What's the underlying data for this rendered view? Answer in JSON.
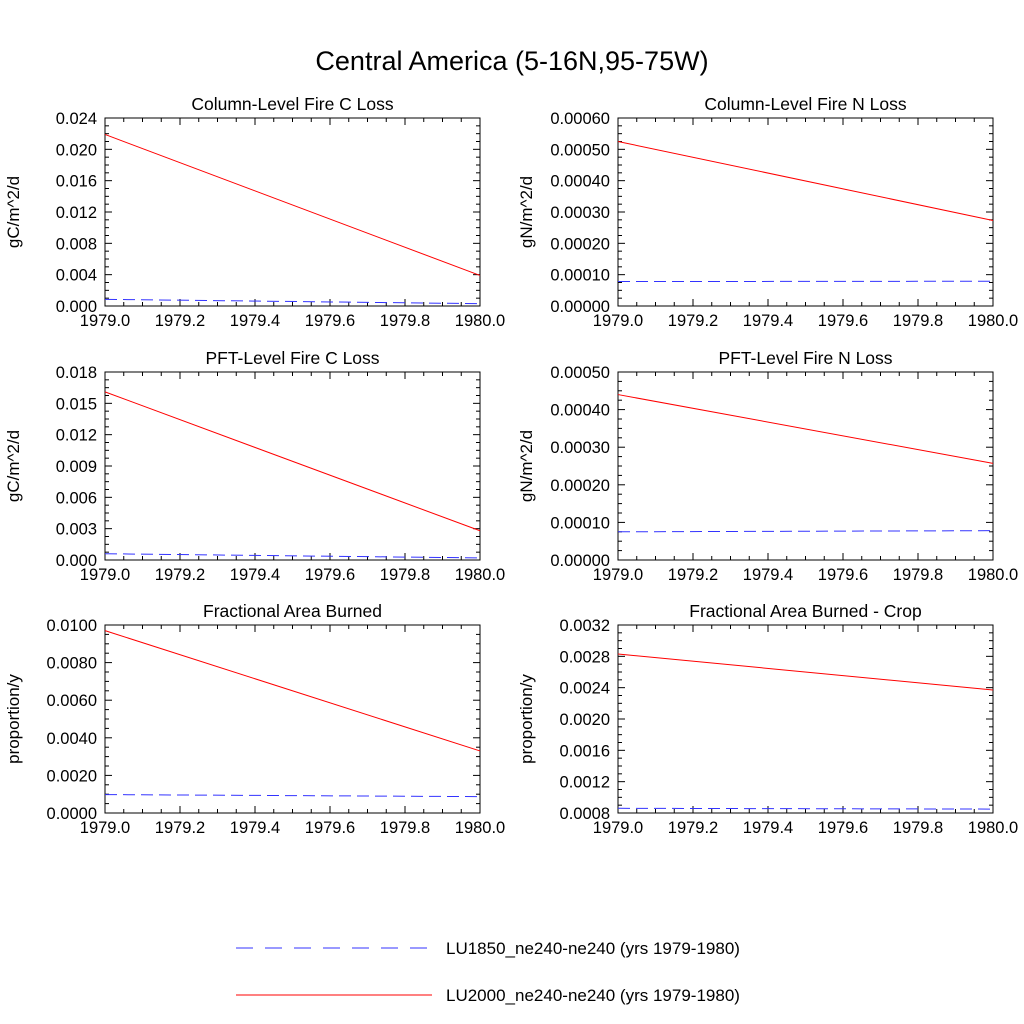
{
  "figure_title": "Central America (5-16N,95-75W)",
  "legend": {
    "entries": [
      {
        "label": "LU1850_ne240-ne240 (yrs 1979-1980)",
        "color": "#3333ff",
        "dash": "dashed"
      },
      {
        "label": "LU2000_ne240-ne240 (yrs 1979-1980)",
        "color": "#ff0000",
        "dash": "solid"
      }
    ]
  },
  "chart_data": [
    {
      "type": "line",
      "title": "Column-Level Fire C Loss",
      "xlabel": "",
      "ylabel": "gC/m^2/d",
      "xlim": [
        1979.0,
        1980.0
      ],
      "ylim": [
        0.0,
        0.024
      ],
      "x_ticks": [
        "1979.0",
        "1979.2",
        "1979.4",
        "1979.6",
        "1979.8",
        "1980.0"
      ],
      "y_ticks": [
        "0.000",
        "0.004",
        "0.008",
        "0.012",
        "0.016",
        "0.020",
        "0.024"
      ],
      "x": [
        1979.0,
        1980.0
      ],
      "series": [
        {
          "legend_index": 0,
          "values": [
            0.00085,
            0.0003
          ],
          "color": "#3333ff",
          "dash": "dashed"
        },
        {
          "legend_index": 1,
          "values": [
            0.0219,
            0.0039
          ],
          "color": "#ff0000",
          "dash": "solid"
        }
      ]
    },
    {
      "type": "line",
      "title": "Column-Level Fire N Loss",
      "xlabel": "",
      "ylabel": "gN/m^2/d",
      "xlim": [
        1979.0,
        1980.0
      ],
      "ylim": [
        0.0,
        0.0006
      ],
      "x_ticks": [
        "1979.0",
        "1979.2",
        "1979.4",
        "1979.6",
        "1979.8",
        "1980.0"
      ],
      "y_ticks": [
        "0.00000",
        "0.00010",
        "0.00020",
        "0.00030",
        "0.00040",
        "0.00050",
        "0.00060"
      ],
      "x": [
        1979.0,
        1980.0
      ],
      "series": [
        {
          "legend_index": 0,
          "values": [
            7.8e-05,
            7.9e-05
          ],
          "color": "#3333ff",
          "dash": "dashed"
        },
        {
          "legend_index": 1,
          "values": [
            0.000525,
            0.000273
          ],
          "color": "#ff0000",
          "dash": "solid"
        }
      ]
    },
    {
      "type": "line",
      "title": "PFT-Level Fire C Loss",
      "xlabel": "",
      "ylabel": "gC/m^2/d",
      "xlim": [
        1979.0,
        1980.0
      ],
      "ylim": [
        0.0,
        0.018
      ],
      "x_ticks": [
        "1979.0",
        "1979.2",
        "1979.4",
        "1979.6",
        "1979.8",
        "1980.0"
      ],
      "y_ticks": [
        "0.000",
        "0.003",
        "0.006",
        "0.009",
        "0.012",
        "0.015",
        "0.018"
      ],
      "x": [
        1979.0,
        1980.0
      ],
      "series": [
        {
          "legend_index": 0,
          "values": [
            0.0006,
            0.0002
          ],
          "color": "#3333ff",
          "dash": "dashed"
        },
        {
          "legend_index": 1,
          "values": [
            0.0161,
            0.0028
          ],
          "color": "#ff0000",
          "dash": "solid"
        }
      ]
    },
    {
      "type": "line",
      "title": "PFT-Level Fire N Loss",
      "xlabel": "",
      "ylabel": "gN/m^2/d",
      "xlim": [
        1979.0,
        1980.0
      ],
      "ylim": [
        0.0,
        0.0005
      ],
      "x_ticks": [
        "1979.0",
        "1979.2",
        "1979.4",
        "1979.6",
        "1979.8",
        "1980.0"
      ],
      "y_ticks": [
        "0.00000",
        "0.00010",
        "0.00020",
        "0.00030",
        "0.00040",
        "0.00050"
      ],
      "x": [
        1979.0,
        1980.0
      ],
      "series": [
        {
          "legend_index": 0,
          "values": [
            7.5e-05,
            7.8e-05
          ],
          "color": "#3333ff",
          "dash": "dashed"
        },
        {
          "legend_index": 1,
          "values": [
            0.00044,
            0.000257
          ],
          "color": "#ff0000",
          "dash": "solid"
        }
      ]
    },
    {
      "type": "line",
      "title": "Fractional Area Burned",
      "xlabel": "",
      "ylabel": "proportion/y",
      "xlim": [
        1979.0,
        1980.0
      ],
      "ylim": [
        0.0,
        0.01
      ],
      "x_ticks": [
        "1979.0",
        "1979.2",
        "1979.4",
        "1979.6",
        "1979.8",
        "1980.0"
      ],
      "y_ticks": [
        "0.0000",
        "0.0020",
        "0.0040",
        "0.0060",
        "0.0080",
        "0.0100"
      ],
      "x": [
        1979.0,
        1980.0
      ],
      "series": [
        {
          "legend_index": 0,
          "values": [
            0.00098,
            0.00087
          ],
          "color": "#3333ff",
          "dash": "dashed"
        },
        {
          "legend_index": 1,
          "values": [
            0.0097,
            0.0033
          ],
          "color": "#ff0000",
          "dash": "solid"
        }
      ]
    },
    {
      "type": "line",
      "title": "Fractional Area Burned - Crop",
      "xlabel": "",
      "ylabel": "proportion/y",
      "xlim": [
        1979.0,
        1980.0
      ],
      "ylim": [
        0.0008,
        0.0032
      ],
      "x_ticks": [
        "1979.0",
        "1979.2",
        "1979.4",
        "1979.6",
        "1979.8",
        "1980.0"
      ],
      "y_ticks": [
        "0.0008",
        "0.0012",
        "0.0016",
        "0.0020",
        "0.0024",
        "0.0028",
        "0.0032"
      ],
      "x": [
        1979.0,
        1980.0
      ],
      "series": [
        {
          "legend_index": 0,
          "values": [
            0.00086,
            0.00085
          ],
          "color": "#3333ff",
          "dash": "dashed"
        },
        {
          "legend_index": 1,
          "values": [
            0.00283,
            0.00237
          ],
          "color": "#ff0000",
          "dash": "solid"
        }
      ]
    }
  ]
}
